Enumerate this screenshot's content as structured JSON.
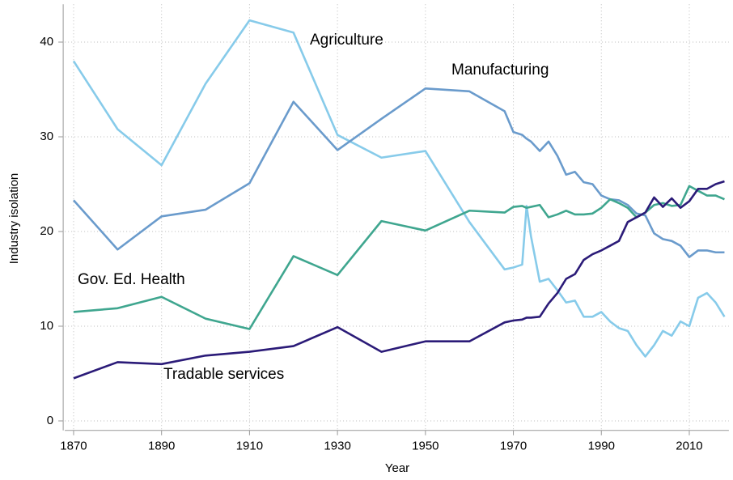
{
  "chart_data": {
    "type": "line",
    "x_label": "Year",
    "y_label": "Industry isolation",
    "x": [
      1870,
      1880,
      1890,
      1900,
      1910,
      1920,
      1930,
      1940,
      1950,
      1960,
      1968,
      1970,
      1972,
      1973,
      1974,
      1976,
      1978,
      1980,
      1982,
      1984,
      1986,
      1988,
      1990,
      1992,
      1994,
      1996,
      1998,
      2000,
      2002,
      2004,
      2006,
      2008,
      2010,
      2012,
      2014,
      2016,
      2018
    ],
    "series": [
      {
        "name": "Agriculture",
        "color": "#87cbea",
        "values": [
          38.0,
          30.8,
          27.0,
          35.6,
          42.3,
          41.0,
          30.2,
          27.8,
          28.5,
          21.0,
          16.0,
          16.2,
          16.5,
          22.7,
          19.5,
          14.7,
          15.0,
          13.8,
          12.5,
          12.7,
          11.0,
          11.0,
          11.5,
          10.5,
          9.8,
          9.5,
          8.0,
          6.8,
          8.0,
          9.5,
          9.0,
          10.5,
          10.0,
          13.0,
          13.5,
          12.5,
          11.0
        ]
      },
      {
        "name": "Manufacturing",
        "color": "#6a9bcc",
        "values": [
          23.3,
          18.1,
          21.6,
          22.3,
          25.1,
          33.7,
          28.6,
          31.9,
          35.1,
          34.8,
          32.7,
          30.5,
          30.2,
          29.8,
          29.5,
          28.5,
          29.5,
          28.0,
          26.0,
          26.3,
          25.2,
          25.0,
          23.8,
          23.4,
          23.3,
          22.8,
          21.9,
          21.7,
          19.8,
          19.2,
          19.0,
          18.5,
          17.3,
          18.0,
          18.0,
          17.8,
          17.8
        ]
      },
      {
        "name": "Gov. Ed. Health",
        "color": "#3fa68f",
        "values": [
          11.5,
          11.9,
          13.1,
          10.8,
          9.7,
          17.4,
          15.4,
          21.1,
          20.1,
          22.2,
          22.0,
          22.6,
          22.7,
          22.5,
          22.6,
          22.8,
          21.5,
          21.8,
          22.2,
          21.8,
          21.8,
          21.9,
          22.5,
          23.4,
          23.0,
          22.5,
          21.5,
          22.0,
          22.8,
          23.0,
          22.7,
          22.8,
          24.8,
          24.3,
          23.8,
          23.8,
          23.4
        ]
      },
      {
        "name": "Tradable services",
        "color": "#2b1b78",
        "values": [
          4.5,
          6.2,
          6.0,
          6.9,
          7.3,
          7.9,
          9.9,
          7.3,
          8.4,
          8.4,
          10.4,
          10.6,
          10.7,
          10.9,
          10.9,
          11.0,
          12.4,
          13.5,
          15.0,
          15.5,
          17.0,
          17.6,
          18.0,
          18.5,
          19.0,
          21.0,
          21.5,
          22.0,
          23.6,
          22.6,
          23.5,
          22.5,
          23.2,
          24.5,
          24.5,
          25.0,
          25.3
        ]
      }
    ],
    "xlim": [
      1868,
      2019
    ],
    "ylim": [
      -1,
      44
    ],
    "xticks": [
      1870,
      1890,
      1910,
      1930,
      1950,
      1970,
      1990,
      2010
    ],
    "yticks": [
      0,
      10,
      20,
      30,
      40
    ],
    "grid": true
  }
}
